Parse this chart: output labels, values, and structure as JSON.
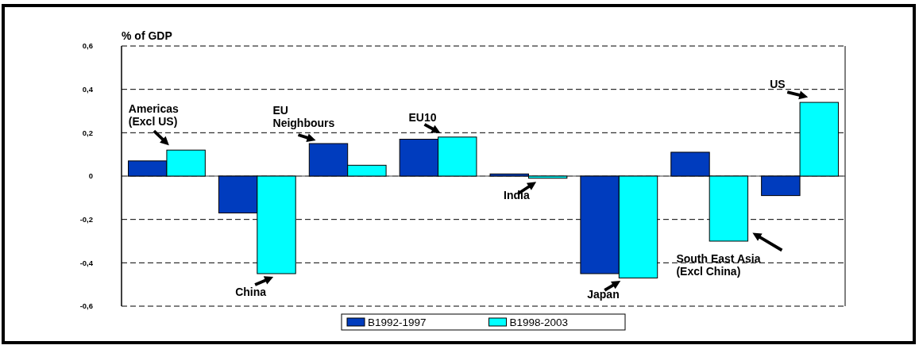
{
  "chart_data": {
    "type": "bar",
    "ylabel": "% of GDP",
    "categories": [
      "Americas (Excl US)",
      "China",
      "EU Neighbours",
      "EU10",
      "India",
      "Japan",
      "South East Asia (Excl China)",
      "US"
    ],
    "series": [
      {
        "name": "B1992-1997",
        "color": "#003cbe",
        "values": [
          0.07,
          -0.17,
          0.15,
          0.17,
          0.01,
          -0.45,
          0.11,
          -0.09
        ]
      },
      {
        "name": "B1998-2003",
        "color": "#00ffff",
        "values": [
          0.12,
          -0.45,
          0.05,
          0.18,
          -0.01,
          -0.47,
          -0.3,
          0.34
        ]
      }
    ],
    "ylim": [
      -0.6,
      0.6
    ],
    "yticks": [
      {
        "value": -0.6,
        "label": "-0,6"
      },
      {
        "value": -0.4,
        "label": "-0,4"
      },
      {
        "value": -0.2,
        "label": "-0,2"
      },
      0,
      {
        "value": 0.2,
        "label": "0,2"
      },
      {
        "value": 0.4,
        "label": "0,4"
      },
      {
        "value": 0.6,
        "label": "0,6"
      }
    ],
    "grid": "y",
    "legend": "bottom"
  }
}
